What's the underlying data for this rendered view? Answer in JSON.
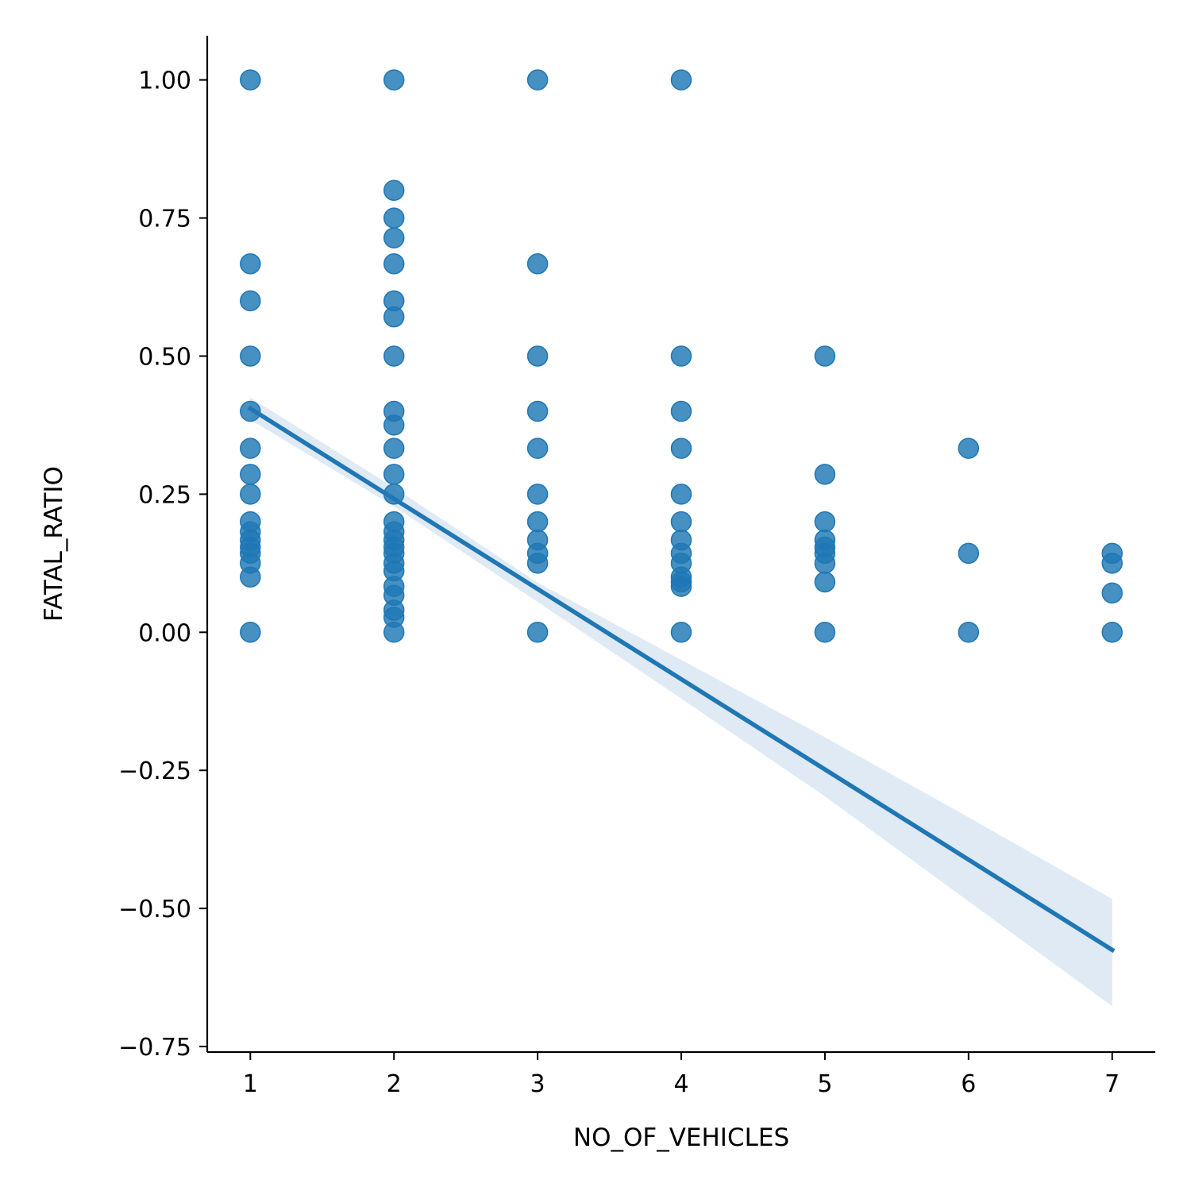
{
  "chart_data": {
    "type": "scatter",
    "title": "",
    "xlabel": "NO_OF_VEHICLES",
    "ylabel": "FATAL_RATIO",
    "xlim": [
      0.7,
      7.3
    ],
    "ylim": [
      -0.76,
      1.08
    ],
    "x_ticks": [
      {
        "value": 1,
        "label": "1"
      },
      {
        "value": 2,
        "label": "2"
      },
      {
        "value": 3,
        "label": "3"
      },
      {
        "value": 4,
        "label": "4"
      },
      {
        "value": 5,
        "label": "5"
      },
      {
        "value": 6,
        "label": "6"
      },
      {
        "value": 7,
        "label": "7"
      }
    ],
    "y_ticks": [
      {
        "value": 1.0,
        "label": "1.00"
      },
      {
        "value": 0.75,
        "label": "0.75"
      },
      {
        "value": 0.5,
        "label": "0.50"
      },
      {
        "value": 0.25,
        "label": "0.25"
      },
      {
        "value": 0.0,
        "label": "0.00"
      },
      {
        "value": -0.25,
        "label": "−0.25"
      },
      {
        "value": -0.5,
        "label": "−0.50"
      },
      {
        "value": -0.75,
        "label": "−0.75"
      }
    ],
    "grid": false,
    "point_color": "#1f77b4",
    "band_color": "#dde9f4",
    "points": [
      {
        "x": 1,
        "y": 1.0
      },
      {
        "x": 1,
        "y": 0.667
      },
      {
        "x": 1,
        "y": 0.6
      },
      {
        "x": 1,
        "y": 0.5
      },
      {
        "x": 1,
        "y": 0.4
      },
      {
        "x": 1,
        "y": 0.333
      },
      {
        "x": 1,
        "y": 0.286
      },
      {
        "x": 1,
        "y": 0.25
      },
      {
        "x": 1,
        "y": 0.2
      },
      {
        "x": 1,
        "y": 0.182
      },
      {
        "x": 1,
        "y": 0.167
      },
      {
        "x": 1,
        "y": 0.154
      },
      {
        "x": 1,
        "y": 0.143
      },
      {
        "x": 1,
        "y": 0.125
      },
      {
        "x": 1,
        "y": 0.1
      },
      {
        "x": 1,
        "y": 0.0
      },
      {
        "x": 2,
        "y": 1.0
      },
      {
        "x": 2,
        "y": 0.8
      },
      {
        "x": 2,
        "y": 0.75
      },
      {
        "x": 2,
        "y": 0.714
      },
      {
        "x": 2,
        "y": 0.667
      },
      {
        "x": 2,
        "y": 0.6
      },
      {
        "x": 2,
        "y": 0.571
      },
      {
        "x": 2,
        "y": 0.5
      },
      {
        "x": 2,
        "y": 0.4
      },
      {
        "x": 2,
        "y": 0.375
      },
      {
        "x": 2,
        "y": 0.333
      },
      {
        "x": 2,
        "y": 0.286
      },
      {
        "x": 2,
        "y": 0.25
      },
      {
        "x": 2,
        "y": 0.2
      },
      {
        "x": 2,
        "y": 0.182
      },
      {
        "x": 2,
        "y": 0.167
      },
      {
        "x": 2,
        "y": 0.154
      },
      {
        "x": 2,
        "y": 0.143
      },
      {
        "x": 2,
        "y": 0.125
      },
      {
        "x": 2,
        "y": 0.111
      },
      {
        "x": 2,
        "y": 0.083
      },
      {
        "x": 2,
        "y": 0.067
      },
      {
        "x": 2,
        "y": 0.04
      },
      {
        "x": 2,
        "y": 0.027
      },
      {
        "x": 2,
        "y": 0.0
      },
      {
        "x": 3,
        "y": 1.0
      },
      {
        "x": 3,
        "y": 0.667
      },
      {
        "x": 3,
        "y": 0.5
      },
      {
        "x": 3,
        "y": 0.4
      },
      {
        "x": 3,
        "y": 0.333
      },
      {
        "x": 3,
        "y": 0.25
      },
      {
        "x": 3,
        "y": 0.2
      },
      {
        "x": 3,
        "y": 0.167
      },
      {
        "x": 3,
        "y": 0.143
      },
      {
        "x": 3,
        "y": 0.125
      },
      {
        "x": 3,
        "y": 0.0
      },
      {
        "x": 4,
        "y": 1.0
      },
      {
        "x": 4,
        "y": 0.5
      },
      {
        "x": 4,
        "y": 0.4
      },
      {
        "x": 4,
        "y": 0.333
      },
      {
        "x": 4,
        "y": 0.25
      },
      {
        "x": 4,
        "y": 0.2
      },
      {
        "x": 4,
        "y": 0.167
      },
      {
        "x": 4,
        "y": 0.143
      },
      {
        "x": 4,
        "y": 0.125
      },
      {
        "x": 4,
        "y": 0.1
      },
      {
        "x": 4,
        "y": 0.091
      },
      {
        "x": 4,
        "y": 0.083
      },
      {
        "x": 4,
        "y": 0.0
      },
      {
        "x": 5,
        "y": 0.5
      },
      {
        "x": 5,
        "y": 0.286
      },
      {
        "x": 5,
        "y": 0.2
      },
      {
        "x": 5,
        "y": 0.167
      },
      {
        "x": 5,
        "y": 0.154
      },
      {
        "x": 5,
        "y": 0.143
      },
      {
        "x": 5,
        "y": 0.125
      },
      {
        "x": 5,
        "y": 0.091
      },
      {
        "x": 5,
        "y": 0.0
      },
      {
        "x": 6,
        "y": 0.333
      },
      {
        "x": 6,
        "y": 0.143
      },
      {
        "x": 6,
        "y": 0.0
      },
      {
        "x": 7,
        "y": 0.143
      },
      {
        "x": 7,
        "y": 0.125
      },
      {
        "x": 7,
        "y": 0.071
      },
      {
        "x": 7,
        "y": 0.0
      }
    ],
    "regression": {
      "x": [
        1,
        7
      ],
      "y": [
        0.405,
        -0.575
      ]
    },
    "confidence_band": {
      "x": [
        1,
        2,
        3,
        4,
        5,
        6,
        7
      ],
      "lower": [
        0.385,
        0.228,
        0.055,
        -0.12,
        -0.297,
        -0.487,
        -0.677
      ],
      "upper": [
        0.425,
        0.262,
        0.09,
        -0.05,
        -0.19,
        -0.335,
        -0.483
      ]
    }
  }
}
